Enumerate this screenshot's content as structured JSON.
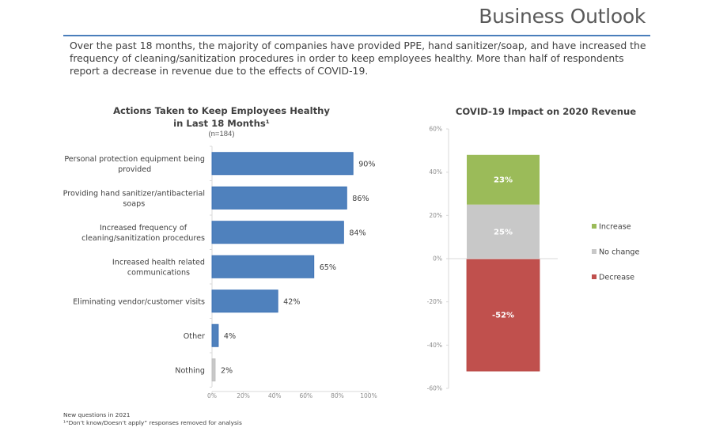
{
  "header": {
    "title": "Business Outlook",
    "rule_color": "#4a7ebb"
  },
  "description": "Over the past 18 months, the majority of companies have provided PPE, hand sanitizer/soap, and have increased the frequency of cleaning/sanitization procedures in order to keep employees healthy. More than half of respondents report a decrease in revenue due to the effects of COVID-19.",
  "footnotes": [
    "New questions in 2021",
    "¹“Don’t know/Doesn’t apply” responses removed for analysis"
  ],
  "chart_data": [
    {
      "type": "bar",
      "orientation": "horizontal",
      "title_line1": "Actions Taken to Keep Employees Healthy",
      "title_line2": "in Last 18 Months¹",
      "subtitle": "(n=184)",
      "categories": [
        [
          "Personal protection equipment being",
          "provided"
        ],
        [
          "Providing hand sanitizer/antibacterial",
          "soaps"
        ],
        [
          "Increased frequency of",
          "cleaning/sanitization procedures"
        ],
        [
          "Increased health related",
          "communications"
        ],
        [
          "Eliminating vendor/customer visits"
        ],
        [
          "Other"
        ],
        [
          "Nothing"
        ]
      ],
      "values": [
        90,
        86,
        84,
        65,
        42,
        4,
        2
      ],
      "value_labels": [
        "90%",
        "86%",
        "84%",
        "65%",
        "42%",
        "4%",
        "2%"
      ],
      "bar_colors": [
        "#4f81bd",
        "#4f81bd",
        "#4f81bd",
        "#4f81bd",
        "#4f81bd",
        "#4f81bd",
        "#c8c8c8"
      ],
      "xlabel": "",
      "ylabel": "",
      "xlim": [
        0,
        100
      ],
      "xticks": [
        0,
        20,
        40,
        60,
        80,
        100
      ],
      "xtick_labels": [
        "0%",
        "20%",
        "40%",
        "60%",
        "80%",
        "100%"
      ],
      "grid": false
    },
    {
      "type": "bar",
      "orientation": "vertical-stacked",
      "title": "COVID-19 Impact on 2020 Revenue",
      "series": [
        {
          "name": "Increase",
          "value": 23,
          "label": "23%",
          "color": "#9bbb59"
        },
        {
          "name": "No change",
          "value": 25,
          "label": "25%",
          "color": "#c8c8c8"
        },
        {
          "name": "Decrease",
          "value": -52,
          "label": "-52%",
          "color": "#c0504d"
        }
      ],
      "stack_order_positive": [
        "No change",
        "Increase"
      ],
      "ylim": [
        -60,
        60
      ],
      "yticks": [
        60,
        40,
        20,
        0,
        -20,
        -40,
        -60
      ],
      "ytick_labels": [
        "60%",
        "40%",
        "20%",
        "0%",
        "-20%",
        "-40%",
        "-60%"
      ],
      "legend": {
        "position": "right",
        "items": [
          {
            "label": "Increase",
            "color": "#9bbb59"
          },
          {
            "label": "No change",
            "color": "#c8c8c8"
          },
          {
            "label": "Decrease",
            "color": "#c0504d"
          }
        ]
      },
      "grid": false
    }
  ]
}
